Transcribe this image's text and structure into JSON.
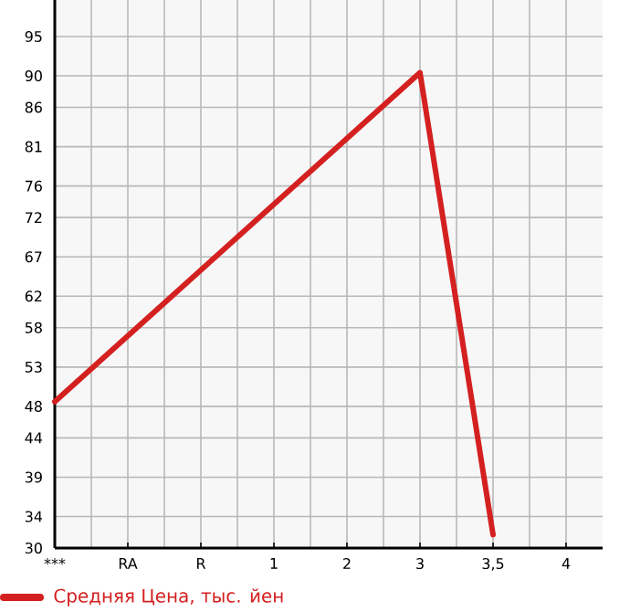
{
  "chart_data": {
    "type": "line",
    "categories": [
      "***",
      "RA",
      "R",
      "1",
      "2",
      "3",
      "3,5",
      "4"
    ],
    "series": [
      {
        "name": "Средняя Цена, тыс. йен",
        "color": "#d42020",
        "values": [
          48.6,
          null,
          null,
          null,
          null,
          90.4,
          31.7,
          null
        ]
      }
    ],
    "ylim": [
      30,
      99.64
    ],
    "yticks": [
      30,
      34,
      39,
      44,
      48,
      53,
      58,
      62,
      67,
      72,
      76,
      81,
      86,
      90,
      95
    ],
    "grid": true,
    "legend": "bottom",
    "marker": "none",
    "line_style": "solid"
  }
}
